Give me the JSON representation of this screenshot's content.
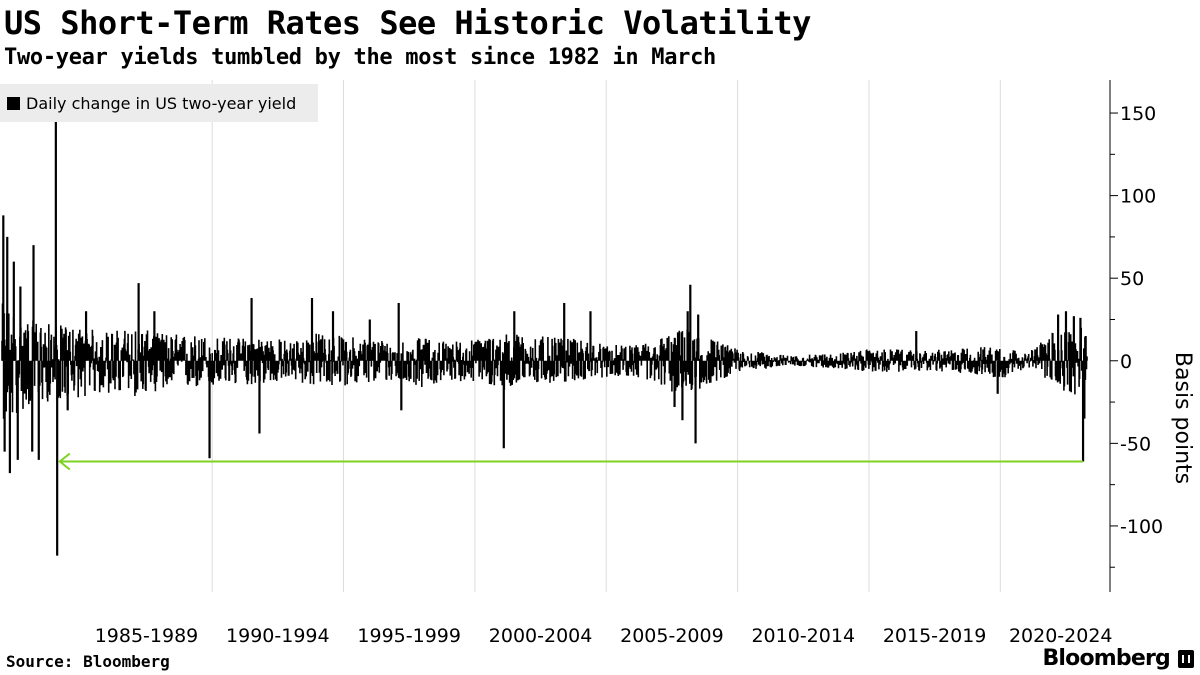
{
  "header": {
    "title": "US Short-Term Rates See Historic Volatility",
    "subtitle": "Two-year yields tumbled by the most since 1982 in March"
  },
  "footer": {
    "source": "Source: Bloomberg",
    "brand": "Bloomberg"
  },
  "colors": {
    "series": "#000000",
    "gridline": "#dcdcdc",
    "arrow": "#7ed321",
    "legend_bg": "#ececec"
  },
  "chart_data": {
    "type": "bar",
    "title": "US Short-Term Rates See Historic Volatility",
    "subtitle": "Two-year yields tumbled by the most since 1982 in March",
    "legend": [
      {
        "label": "Daily change in US two-year yield",
        "color": "#000000"
      }
    ],
    "legend_position": "top-left",
    "xlabel": "",
    "ylabel": "Basis points",
    "x_range": [
      1982.0,
      2023.3
    ],
    "ylim": [
      -140,
      170
    ],
    "yticks": [
      150,
      100,
      50,
      0,
      -50,
      -100
    ],
    "ytick_labels": [
      "150",
      "100",
      "50",
      "0",
      "-50",
      "-100"
    ],
    "x_period_boundaries": [
      1990,
      1995,
      2000,
      2005,
      2010,
      2015,
      2020
    ],
    "xtick_labels": [
      "1985-1989",
      "1990-1994",
      "1995-1999",
      "2000-2004",
      "2005-2009",
      "2010-2014",
      "2015-2019",
      "2020-2024"
    ],
    "xtick_centers": [
      1987.5,
      1992.5,
      1997.5,
      2002.5,
      2007.5,
      2012.5,
      2017.5,
      2022.3
    ],
    "y_axis_side": "right",
    "volatility_envelope": {
      "description": "Approximate typical daily range of changes (basis points) by year",
      "years": [
        1982,
        1983,
        1984,
        1985,
        1986,
        1987,
        1988,
        1989,
        1990,
        1991,
        1992,
        1993,
        1994,
        1995,
        1996,
        1997,
        1998,
        1999,
        2000,
        2001,
        2002,
        2003,
        2004,
        2005,
        2006,
        2007,
        2008,
        2009,
        2010,
        2011,
        2012,
        2013,
        2014,
        2015,
        2016,
        2017,
        2018,
        2019,
        2020,
        2021,
        2022,
        2023
      ],
      "upper": [
        35,
        25,
        22,
        20,
        18,
        20,
        17,
        16,
        15,
        14,
        15,
        12,
        17,
        15,
        14,
        12,
        14,
        12,
        13,
        17,
        16,
        14,
        13,
        10,
        9,
        14,
        20,
        14,
        7,
        5,
        3,
        4,
        5,
        7,
        7,
        6,
        7,
        8,
        10,
        4,
        18,
        20
      ],
      "lower": [
        -40,
        -28,
        -24,
        -22,
        -20,
        -22,
        -18,
        -17,
        -16,
        -15,
        -14,
        -12,
        -16,
        -15,
        -14,
        -12,
        -16,
        -12,
        -13,
        -18,
        -15,
        -14,
        -12,
        -10,
        -9,
        -16,
        -22,
        -14,
        -7,
        -5,
        -3,
        -4,
        -5,
        -7,
        -7,
        -6,
        -7,
        -8,
        -12,
        -4,
        -16,
        -22
      ]
    },
    "notable_moves": [
      {
        "date": 1982.05,
        "value": 88
      },
      {
        "date": 1982.1,
        "value": -55
      },
      {
        "date": 1982.2,
        "value": 75
      },
      {
        "date": 1982.3,
        "value": -68
      },
      {
        "date": 1982.45,
        "value": 60
      },
      {
        "date": 1982.6,
        "value": -60
      },
      {
        "date": 1982.7,
        "value": 45
      },
      {
        "date": 1983.15,
        "value": -55
      },
      {
        "date": 1983.2,
        "value": 70
      },
      {
        "date": 1983.4,
        "value": -60
      },
      {
        "date": 1984.05,
        "value": 145
      },
      {
        "date": 1984.1,
        "value": -118
      },
      {
        "date": 1984.5,
        "value": -30
      },
      {
        "date": 1985.2,
        "value": 30
      },
      {
        "date": 1987.2,
        "value": 47
      },
      {
        "date": 1987.8,
        "value": 30
      },
      {
        "date": 1989.9,
        "value": -59
      },
      {
        "date": 1991.5,
        "value": 38
      },
      {
        "date": 1991.8,
        "value": -44
      },
      {
        "date": 1993.8,
        "value": 38
      },
      {
        "date": 1994.6,
        "value": 30
      },
      {
        "date": 1996.0,
        "value": 25
      },
      {
        "date": 1997.1,
        "value": 35
      },
      {
        "date": 1997.2,
        "value": -30
      },
      {
        "date": 2001.1,
        "value": -53
      },
      {
        "date": 2001.5,
        "value": 30
      },
      {
        "date": 2003.4,
        "value": 35
      },
      {
        "date": 2004.4,
        "value": 30
      },
      {
        "date": 2007.6,
        "value": -28
      },
      {
        "date": 2007.9,
        "value": -36
      },
      {
        "date": 2008.1,
        "value": 30
      },
      {
        "date": 2008.2,
        "value": 46
      },
      {
        "date": 2008.4,
        "value": -50
      },
      {
        "date": 2008.5,
        "value": 28
      },
      {
        "date": 2016.8,
        "value": 18
      },
      {
        "date": 2019.9,
        "value": -20
      },
      {
        "date": 2022.2,
        "value": 28
      },
      {
        "date": 2022.5,
        "value": 30
      },
      {
        "date": 2022.8,
        "value": 27
      },
      {
        "date": 2023.05,
        "value": 26
      },
      {
        "date": 2023.15,
        "value": -61
      },
      {
        "date": 2023.2,
        "value": -35
      },
      {
        "date": 2023.25,
        "value": 15
      }
    ],
    "annotation_arrow": {
      "from": {
        "x": 2023.15,
        "y": -61
      },
      "to": {
        "x": 1984.2,
        "y": -61
      },
      "description": "March 2023 drop compared with similar moves back to 1982"
    }
  }
}
